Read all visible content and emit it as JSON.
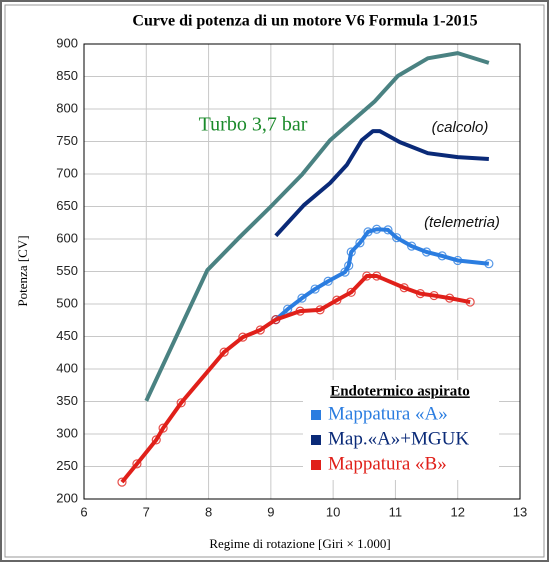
{
  "chart_data": {
    "type": "line",
    "title": "Curve di potenza di un motore V6 Formula 1-2015",
    "xlabel": "Regime di rotazione  [Giri × 1.000]",
    "ylabel": "Potenza  [CV]",
    "annotations": [
      "Turbo 3,7 bar",
      "(calcolo)",
      "(telemetria)"
    ],
    "legend_title": "Endotermico aspirato",
    "xlim": [
      6,
      13
    ],
    "xticks": [
      6,
      7,
      8,
      9,
      10,
      11,
      12,
      13
    ],
    "ylim": [
      200,
      900
    ],
    "yticks": [
      200,
      250,
      300,
      350,
      400,
      450,
      500,
      550,
      600,
      650,
      700,
      750,
      800,
      850,
      900
    ],
    "grid": true,
    "series": [
      {
        "color": "#4a8282",
        "markers": false,
        "x": [
          7.0,
          7.98,
          8.5,
          9.0,
          9.5,
          9.95,
          10.67,
          11.04,
          11.52,
          12.0,
          12.5
        ],
        "values": [
          351,
          552,
          603,
          650,
          699,
          752,
          812,
          851,
          878,
          886,
          871
        ]
      },
      {
        "name": "Mappatura «A»",
        "color": "#2b7de0",
        "markers": true,
        "x": [
          9.08,
          9.27,
          9.5,
          9.71,
          9.92,
          10.19,
          10.25,
          10.29,
          10.43,
          10.56,
          10.7,
          10.88,
          11.02,
          11.26,
          11.5,
          11.75,
          12.0,
          12.5
        ],
        "values": [
          476,
          492,
          509,
          523,
          535,
          549,
          559,
          580,
          594,
          611,
          615,
          614,
          602,
          589,
          580,
          574,
          567,
          562
        ]
      },
      {
        "name": "Map.«A»+MGUK",
        "color": "#0a2a78",
        "markers": false,
        "x": [
          9.08,
          9.53,
          9.95,
          10.22,
          10.46,
          10.64,
          10.75,
          11.07,
          11.52,
          12.0,
          12.5
        ],
        "values": [
          605,
          652,
          686,
          714,
          752,
          766,
          766,
          749,
          732,
          726,
          723
        ]
      },
      {
        "name": "Mappatura «B»",
        "color": "#e0201a",
        "markers": true,
        "x": [
          6.61,
          6.85,
          7.16,
          7.27,
          7.56,
          8.25,
          8.55,
          8.83,
          9.08,
          9.47,
          9.79,
          10.06,
          10.29,
          10.54,
          10.7,
          11.14,
          11.4,
          11.62,
          11.87,
          12.2
        ],
        "values": [
          226,
          254,
          291,
          309,
          348,
          426,
          449,
          460,
          476,
          489,
          491,
          506,
          518,
          543,
          543,
          525,
          516,
          513,
          509,
          503
        ]
      }
    ]
  }
}
